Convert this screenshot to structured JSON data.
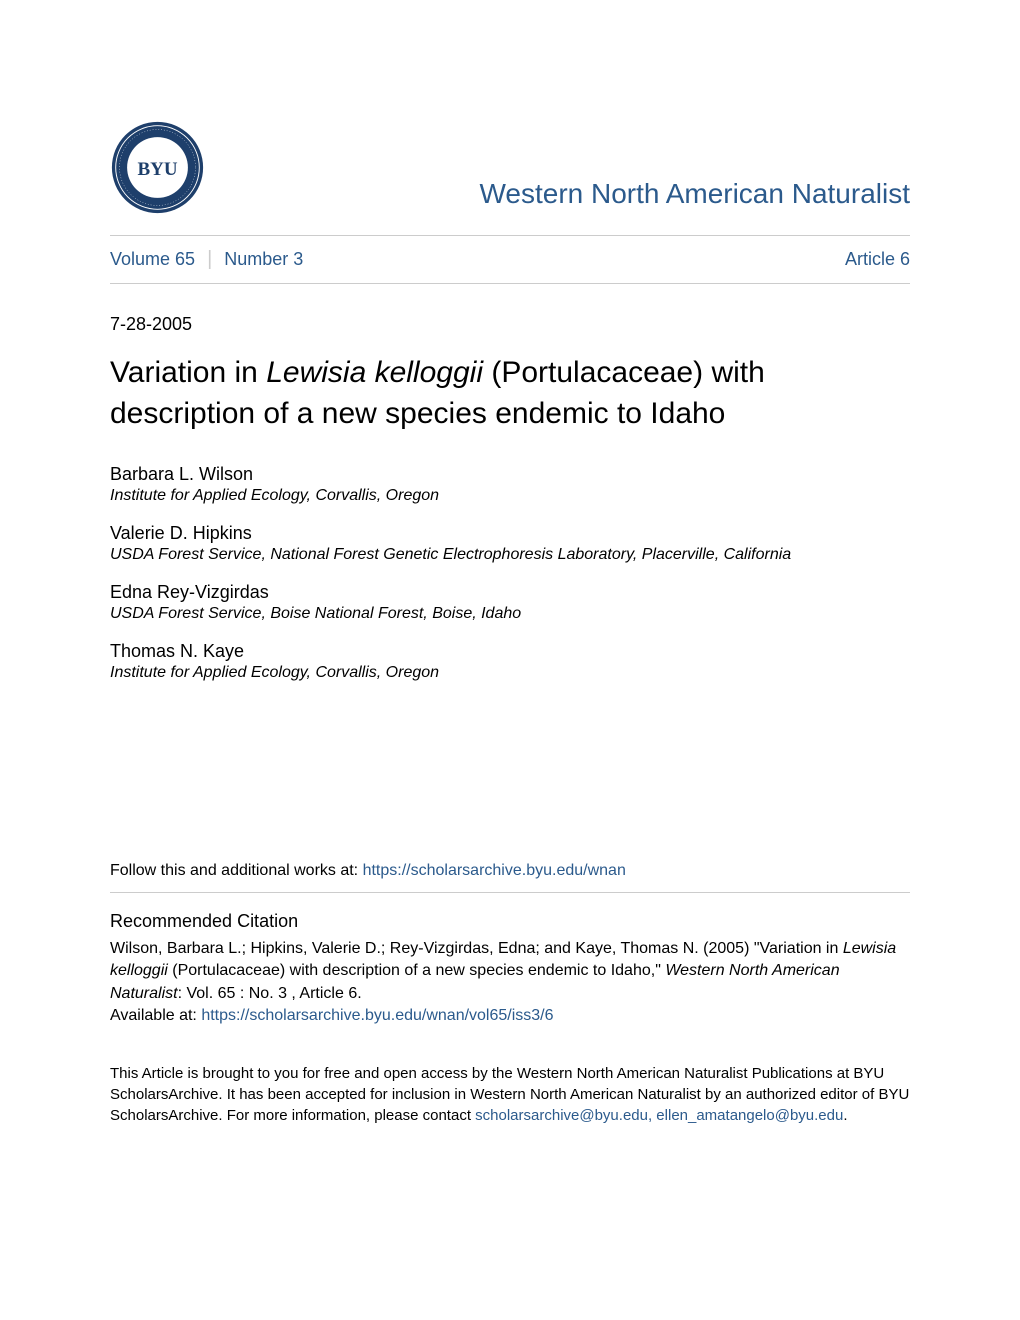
{
  "journal_title": "Western North American Naturalist",
  "nav": {
    "volume_label": "Volume 65",
    "number_label": "Number 3",
    "article_label": "Article 6"
  },
  "date": "7-28-2005",
  "article": {
    "title_pre": "Variation in ",
    "title_italic": "Lewisia kelloggii",
    "title_post": " (Portulacaceae) with description of a new species endemic to Idaho"
  },
  "authors": [
    {
      "name": "Barbara L. Wilson",
      "affiliation": "Institute for Applied Ecology, Corvallis, Oregon"
    },
    {
      "name": "Valerie D. Hipkins",
      "affiliation": "USDA Forest Service, National Forest Genetic Electrophoresis Laboratory, Placerville, California"
    },
    {
      "name": "Edna Rey-Vizgirdas",
      "affiliation": "USDA Forest Service, Boise National Forest, Boise, Idaho"
    },
    {
      "name": "Thomas N. Kaye",
      "affiliation": "Institute for Applied Ecology, Corvallis, Oregon"
    }
  ],
  "follow": {
    "prefix": "Follow this and additional works at: ",
    "url": "https://scholarsarchive.byu.edu/wnan"
  },
  "citation": {
    "heading": "Recommended Citation",
    "line1": "Wilson, Barbara L.; Hipkins, Valerie D.; Rey-Vizgirdas, Edna; and Kaye, Thomas N. (2005) \"Variation in ",
    "line1_italic": "Lewisia kelloggii",
    "line2": " (Portulacaceae) with description of a new species endemic to Idaho,\" ",
    "line2_italic": "Western North American Naturalist",
    "line3": ": Vol. 65 : No. 3 , Article 6.",
    "available_prefix": "Available at: ",
    "available_url": "https://scholarsarchive.byu.edu/wnan/vol65/iss3/6"
  },
  "footer": {
    "text_pre": "This Article is brought to you for free and open access by the Western North American Naturalist Publications at BYU ScholarsArchive. It has been accepted for inclusion in Western North American Naturalist by an authorized editor of BYU ScholarsArchive. For more information, please contact ",
    "contact": "scholarsarchive@byu.edu, ellen_amatangelo@byu.edu",
    "text_post": "."
  },
  "logo": {
    "outer_color": "#1e3f6b",
    "inner_color": "#ffffff",
    "text": "BYU"
  },
  "colors": {
    "link": "#2b5a8c",
    "divider": "#cccccc",
    "text": "#000000",
    "background": "#ffffff"
  }
}
